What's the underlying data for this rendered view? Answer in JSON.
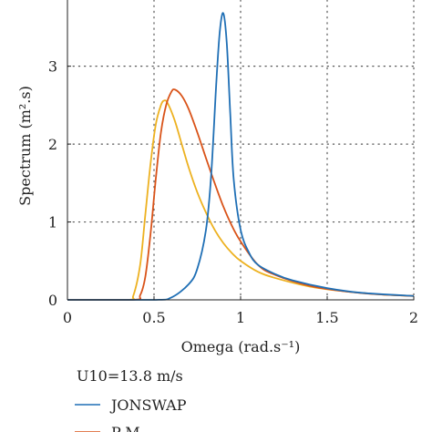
{
  "chart_data": {
    "type": "line",
    "title": "",
    "xlabel": "Omega (rad.s⁻¹)",
    "ylabel": "Spectrum (m².s)",
    "xlim": [
      0,
      2
    ],
    "ylim": [
      0,
      3.85
    ],
    "xticks": [
      0,
      0.5,
      1,
      1.5,
      2
    ],
    "xtick_labels": [
      "0",
      "0.5",
      "1",
      "1.5",
      "2"
    ],
    "yticks": [
      0,
      1,
      2,
      3
    ],
    "ytick_labels": [
      "0",
      "1",
      "2",
      "3"
    ],
    "grid": true,
    "grid_style": "dotted",
    "legend_title": "U10=13.8 m/s",
    "legend_position": "below",
    "series": [
      {
        "name": "JONSWAP",
        "color": "#1f6fb5",
        "x": [
          0,
          0.5,
          0.6,
          0.7,
          0.75,
          0.8,
          0.83,
          0.86,
          0.88,
          0.9,
          0.92,
          0.94,
          0.96,
          1.0,
          1.05,
          1.1,
          1.2,
          1.3,
          1.5,
          1.7,
          2.0
        ],
        "y": [
          0,
          0.0,
          0.03,
          0.2,
          0.4,
          0.9,
          1.6,
          2.8,
          3.45,
          3.68,
          3.3,
          2.4,
          1.55,
          0.9,
          0.6,
          0.45,
          0.33,
          0.25,
          0.15,
          0.09,
          0.05
        ]
      },
      {
        "name": "P-M",
        "color": "#d95319",
        "x": [
          0,
          0.38,
          0.42,
          0.45,
          0.48,
          0.51,
          0.54,
          0.57,
          0.6,
          0.62,
          0.66,
          0.7,
          0.75,
          0.8,
          0.85,
          0.9,
          0.95,
          1.0,
          1.1,
          1.2,
          1.4,
          1.6,
          1.8,
          2.0
        ],
        "y": [
          0,
          0.0,
          0.06,
          0.3,
          0.85,
          1.55,
          2.15,
          2.5,
          2.67,
          2.7,
          2.62,
          2.45,
          2.15,
          1.82,
          1.5,
          1.2,
          0.95,
          0.75,
          0.45,
          0.32,
          0.18,
          0.11,
          0.07,
          0.05
        ]
      },
      {
        "name": "",
        "color": "#edb120",
        "x": [
          0,
          0.35,
          0.38,
          0.42,
          0.45,
          0.48,
          0.51,
          0.54,
          0.56,
          0.58,
          0.62,
          0.66,
          0.7,
          0.75,
          0.8,
          0.85,
          0.9,
          0.95,
          1.0,
          1.1,
          1.2,
          1.4,
          1.6,
          1.8,
          2.0
        ],
        "y": [
          0,
          0.0,
          0.05,
          0.45,
          1.1,
          1.75,
          2.25,
          2.5,
          2.56,
          2.52,
          2.3,
          2.0,
          1.7,
          1.38,
          1.12,
          0.9,
          0.73,
          0.6,
          0.5,
          0.36,
          0.28,
          0.17,
          0.11,
          0.07,
          0.05
        ]
      }
    ]
  }
}
